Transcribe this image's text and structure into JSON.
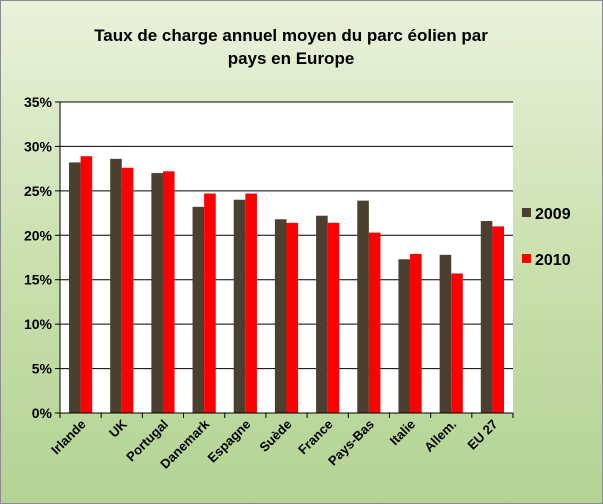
{
  "chart_data": {
    "type": "bar",
    "title_lines": [
      "Taux de charge annuel moyen du parc éolien par",
      "pays en Europe"
    ],
    "categories": [
      "Irlande",
      "UK",
      "Portugal",
      "Danemark",
      "Espagne",
      "Suède",
      "France",
      "Pays-Bas",
      "Italie",
      "Allem.",
      "EU 27"
    ],
    "series": [
      {
        "name": "2009",
        "color": "#4b3f2f",
        "values": [
          0.282,
          0.286,
          0.27,
          0.232,
          0.24,
          0.218,
          0.222,
          0.239,
          0.173,
          0.178,
          0.216
        ]
      },
      {
        "name": "2010",
        "color": "#ff0000",
        "values": [
          0.289,
          0.276,
          0.272,
          0.247,
          0.247,
          0.214,
          0.214,
          0.203,
          0.179,
          0.157,
          0.21
        ]
      }
    ],
    "y_ticks": [
      "0%",
      "5%",
      "10%",
      "15%",
      "20%",
      "25%",
      "30%",
      "35%"
    ],
    "ylim": [
      0,
      0.35
    ],
    "grid": true,
    "legend_position": "right",
    "plot_background": "#ffffff",
    "gridline_color": "#000000"
  }
}
